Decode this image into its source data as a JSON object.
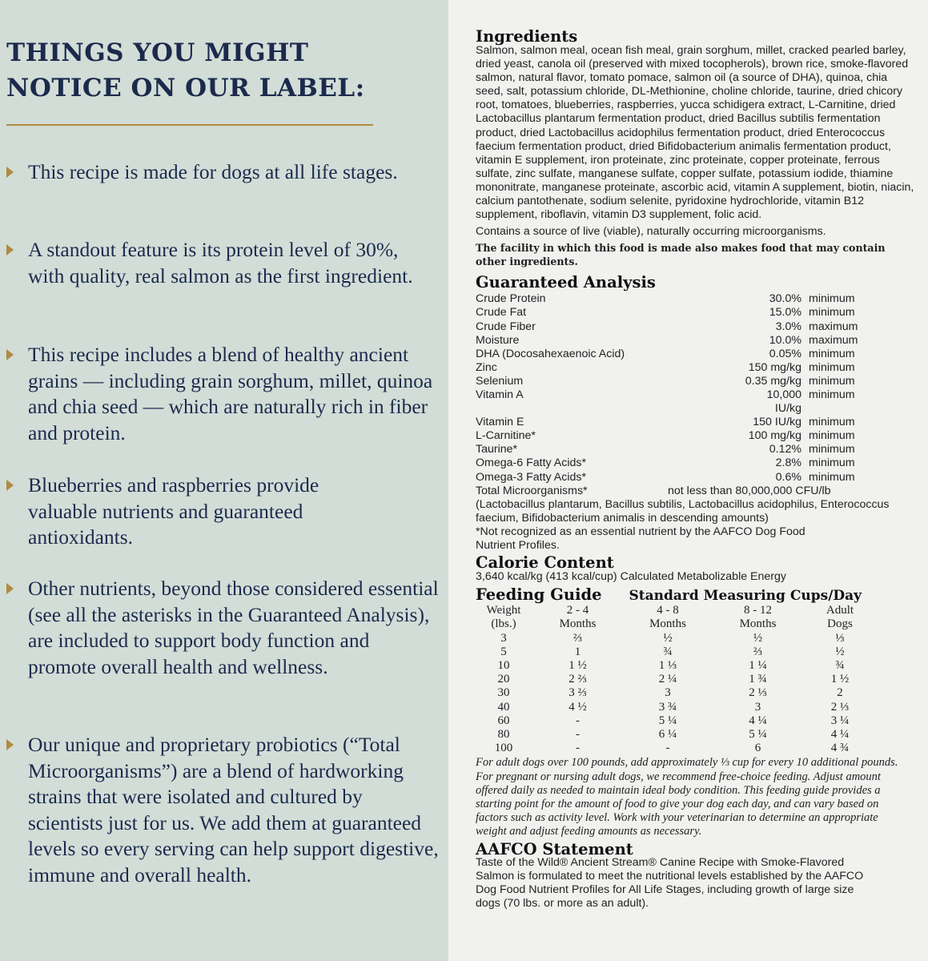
{
  "left": {
    "heading_line1": "THINGS YOU MIGHT",
    "heading_line2": "NOTICE ON OUR LABEL:",
    "accent": "#b08a3e",
    "bullets": [
      "This recipe is made for dogs at all life stages.",
      "A standout feature is its protein level of 30%, with quality, real salmon as the first ingredient.",
      "This recipe includes a blend of healthy ancient grains — including grain sorghum, millet, quinoa and chia seed — which are naturally rich in fiber and protein.",
      "Blueberries and raspberries provide valuable nutrients and guaranteed antioxidants.",
      "Other nutrients, beyond those considered essential (see all the asterisks in the Guaranteed Analysis), are included to support body function and promote overall health and wellness.",
      "Our unique and proprietary probiotics (“Total Microorganisms”) are a blend of hardworking strains that were isolated and cultured by scientists just for us. We add them at guaranteed levels so every serving can help support digestive, immune and overall health."
    ]
  },
  "ingredients": {
    "title": "Ingredients",
    "text": "Salmon, salmon meal, ocean fish meal, grain sorghum, millet, cracked pearled barley, dried yeast, canola oil (preserved with mixed tocopherols), brown rice, smoke-flavored salmon, natural flavor, tomato pomace, salmon oil (a source of DHA), quinoa, chia seed, salt, potassium chloride, DL-Methionine, choline chloride, taurine, dried chicory root, tomatoes, blueberries, raspberries, yucca schidigera extract, L-Carnitine, dried Lactobacillus plantarum fermentation product, dried Bacillus subtilis fermentation product, dried Lactobacillus acidophilus fermentation product, dried Enterococcus faecium fermentation product, dried Bifidobacterium animalis fermentation product, vitamin E supplement, iron proteinate, zinc proteinate, copper proteinate, ferrous sulfate, zinc sulfate, manganese sulfate, copper sulfate, potassium iodide, thiamine mononitrate, manganese proteinate, ascorbic acid, vitamin A supplement, biotin, niacin, calcium pantothenate, sodium selenite, pyridoxine hydrochloride, vitamin B12 supplement, riboflavin, vitamin D3 supplement, folic acid.",
    "note": "Contains a source of live (viable), naturally occurring microorganisms.",
    "facility": "The facility in which this food is made also makes food that may contain other ingredients."
  },
  "analysis": {
    "title": "Guaranteed Analysis",
    "rows": [
      {
        "n": "Crude Protein",
        "v": "30.0%",
        "u": "minimum"
      },
      {
        "n": "Crude Fat",
        "v": "15.0%",
        "u": "minimum"
      },
      {
        "n": "Crude Fiber",
        "v": "3.0%",
        "u": "maximum"
      },
      {
        "n": "Moisture",
        "v": "10.0%",
        "u": "maximum"
      },
      {
        "n": "DHA (Docosahexaenoic Acid)",
        "v": "0.05%",
        "u": "minimum"
      },
      {
        "n": "Zinc",
        "v": "150 mg/kg",
        "u": "minimum"
      },
      {
        "n": "Selenium",
        "v": "0.35 mg/kg",
        "u": "minimum"
      },
      {
        "n": "Vitamin A",
        "v": "10,000 IU/kg",
        "u": "minimum"
      },
      {
        "n": "Vitamin E",
        "v": "150 IU/kg",
        "u": "minimum"
      },
      {
        "n": "L-Carnitine*",
        "v": "100 mg/kg",
        "u": "minimum"
      },
      {
        "n": "Taurine*",
        "v": "0.12%",
        "u": "minimum"
      },
      {
        "n": "Omega-6 Fatty Acids*",
        "v": "2.8%",
        "u": "minimum"
      },
      {
        "n": "Omega-3 Fatty Acids*",
        "v": "0.6%",
        "u": "minimum"
      }
    ],
    "micro_name": "Total Microorganisms*",
    "micro_value": "not less than 80,000,000 CFU/lb",
    "micro_note": "(Lactobacillus plantarum, Bacillus subtilis, Lactobacillus acidophilus, Enterococcus faecium, Bifidobacterium animalis in descending amounts)",
    "footnote": "*Not recognized as an essential nutrient by the AAFCO Dog Food Nutrient Profiles."
  },
  "calorie": {
    "title": "Calorie Content",
    "text": "3,640 kcal/kg (413 kcal/cup) Calculated Metabolizable Energy"
  },
  "feeding": {
    "title": "Feeding Guide",
    "subtitle": "Standard Measuring Cups/Day",
    "headers": [
      [
        "Weight",
        "(lbs.)"
      ],
      [
        "2 - 4",
        "Months"
      ],
      [
        "4 - 8",
        "Months"
      ],
      [
        "8 - 12",
        "Months"
      ],
      [
        "Adult",
        "Dogs"
      ]
    ],
    "rows": [
      [
        "3",
        "⅔",
        "½",
        "½",
        "⅓"
      ],
      [
        "5",
        "1",
        "¾",
        "⅔",
        "½"
      ],
      [
        "10",
        "1 ½",
        "1 ⅓",
        "1 ¼",
        "¾"
      ],
      [
        "20",
        "2 ⅔",
        "2 ¼",
        "1 ¾",
        "1 ½"
      ],
      [
        "30",
        "3 ⅔",
        "3",
        "2 ⅓",
        "2"
      ],
      [
        "40",
        "4 ½",
        "3 ¾",
        "3",
        "2 ⅓"
      ],
      [
        "60",
        "-",
        "5 ¼",
        "4 ¼",
        "3 ¼"
      ],
      [
        "80",
        "-",
        "6 ¼",
        "5 ¼",
        "4 ¼"
      ],
      [
        "100",
        "-",
        "-",
        "6",
        "4 ¾"
      ]
    ],
    "note": "For adult dogs over 100 pounds, add approximately ⅓ cup for every 10 additional pounds. For pregnant or nursing adult dogs, we recommend free-choice feeding. Adjust amount offered daily as needed to maintain ideal body condition. This feeding guide provides a starting point for the amount of food to give your dog each day, and can vary based on factors such as activity level. Work with your veterinarian to determine an appropriate weight and adjust feeding amounts as necessary."
  },
  "aafco": {
    "title": "AAFCO Statement",
    "text": "Taste of the Wild® Ancient Stream® Canine Recipe with Smoke-Flavored Salmon is formulated to meet the nutritional levels established by the AAFCO Dog Food Nutrient Profiles for All Life Stages, including growth of large size dogs (70 lbs. or more as an adult)."
  }
}
